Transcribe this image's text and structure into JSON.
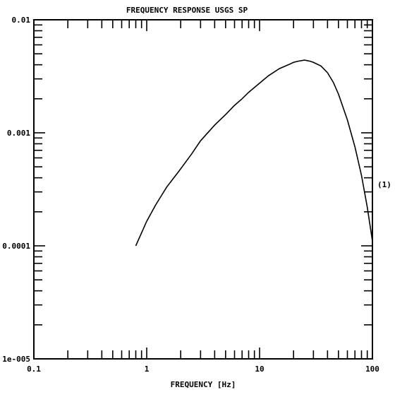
{
  "chart_data": {
    "type": "line",
    "title": "FREQUENCY RESPONSE USGS SP",
    "xlabel": "FREQUENCY [Hz]",
    "ylabel": "",
    "x_scale": "log",
    "y_scale": "log",
    "xlim": [
      0.1,
      100
    ],
    "ylim": [
      1e-05,
      0.01
    ],
    "x_tick_labels": [
      "0.1",
      "1",
      "10",
      "100"
    ],
    "y_tick_labels": [
      "0.01",
      "0.001",
      "0.0001",
      "1e-005"
    ],
    "annotations": [
      "(1)"
    ],
    "grid": false,
    "series": [
      {
        "color": "#000000",
        "x": [
          0.8,
          1.0,
          1.2,
          1.5,
          2.0,
          2.5,
          3.0,
          4.0,
          5.0,
          6.0,
          7.0,
          8.0,
          10.0,
          12.0,
          15.0,
          18.0,
          20.0,
          22.0,
          25.0,
          28.0,
          30.0,
          35.0,
          40.0,
          45.0,
          50.0,
          60.0,
          70.0,
          80.0,
          90.0,
          100.0
        ],
        "y": [
          0.0001,
          0.000165,
          0.00023,
          0.00033,
          0.00048,
          0.00065,
          0.00085,
          0.00117,
          0.00145,
          0.00175,
          0.002,
          0.00228,
          0.00275,
          0.0032,
          0.0037,
          0.004,
          0.0042,
          0.0043,
          0.0044,
          0.0043,
          0.0042,
          0.0039,
          0.0034,
          0.0028,
          0.0022,
          0.0013,
          0.00075,
          0.00042,
          0.00022,
          0.00011
        ]
      }
    ],
    "label_font_size": 11
  }
}
